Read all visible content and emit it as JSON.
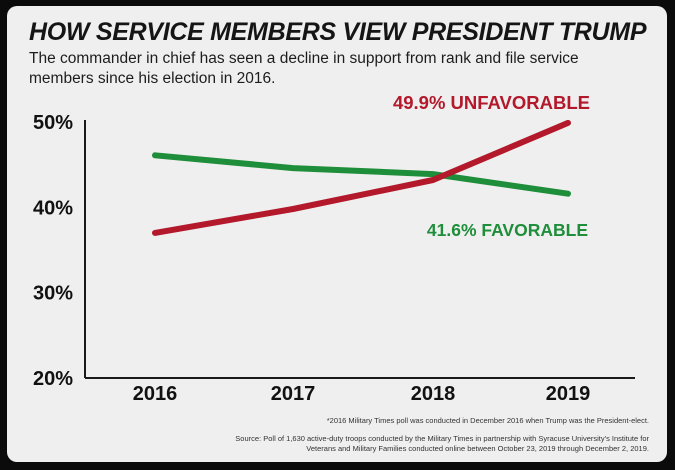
{
  "chart_data": {
    "type": "line",
    "title": "HOW SERVICE MEMBERS VIEW PRESIDENT TRUMP",
    "subtitle": "The commander in chief has seen a decline in support from rank and file service members since his election in 2016.",
    "categories": [
      "2016",
      "2017",
      "2018",
      "2019"
    ],
    "ylim": [
      20,
      50
    ],
    "yticks": [
      50,
      40,
      30,
      20
    ],
    "ytick_labels": [
      "50%",
      "40%",
      "30%",
      "20%"
    ],
    "series": [
      {
        "name": "UNFAVORABLE",
        "color": "#b3182b",
        "values": [
          37.0,
          39.8,
          43.2,
          49.9
        ],
        "end_label": "49.9% UNFAVORABLE"
      },
      {
        "name": "FAVORABLE",
        "color": "#1f8e3a",
        "values": [
          46.1,
          44.6,
          43.9,
          41.6
        ],
        "end_label": "41.6% FAVORABLE"
      }
    ],
    "grid": false,
    "footnote": "*2016 Military Times poll was conducted in December 2016 when Trump was the President-elect.",
    "source": "Source: Poll of 1,630 active-duty troops conducted by the Military Times in partnership with Syracuse University's Institute for Veterans and Military Families conducted online between October 23, 2019 through December 2, 2019."
  }
}
